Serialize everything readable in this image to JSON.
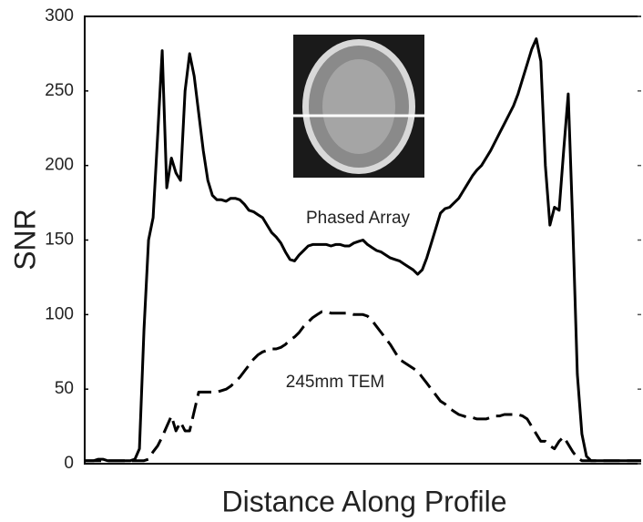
{
  "chart_data": {
    "type": "line",
    "xlabel": "Distance Along Profile",
    "ylabel": "SNR",
    "annotations": [
      "Phased Array",
      "245mm TEM"
    ],
    "categories": [
      null,
      null,
      null,
      null,
      null,
      null,
      null,
      null,
      null,
      null,
      null,
      null,
      null,
      null,
      null,
      null,
      null,
      null,
      null,
      null,
      null,
      null,
      null,
      null,
      null,
      null,
      null,
      null,
      null,
      null,
      null,
      null,
      null,
      null,
      null,
      null,
      null,
      null,
      null,
      null,
      null,
      null,
      null,
      null,
      null,
      null,
      null,
      null,
      null,
      null,
      null,
      null,
      null,
      null,
      null,
      null,
      null,
      null,
      null,
      null,
      null,
      null,
      null,
      null,
      null,
      null,
      null,
      null,
      null,
      null,
      null,
      null,
      null,
      null,
      null,
      null,
      null,
      null,
      null,
      null,
      null,
      null,
      null,
      null,
      null,
      null,
      null,
      null,
      null,
      null,
      null,
      null,
      null,
      null,
      null,
      null,
      null,
      null,
      null,
      null,
      null,
      null,
      null,
      null,
      null,
      null,
      null,
      null,
      null,
      null,
      null,
      null,
      null,
      null,
      null,
      null,
      null,
      null,
      null,
      null,
      null,
      null,
      null
    ],
    "series": [
      {
        "name": "Phased Array",
        "color": "#000000",
        "dash": false,
        "values": [
          2,
          2,
          2,
          3,
          3,
          2,
          2,
          2,
          2,
          2,
          2,
          3,
          10,
          90,
          150,
          165,
          220,
          277,
          185,
          205,
          195,
          190,
          250,
          275,
          260,
          235,
          210,
          190,
          180,
          177,
          177,
          176,
          178,
          178,
          177,
          174,
          170,
          169,
          167,
          165,
          160,
          155,
          152,
          148,
          142,
          137,
          136,
          140,
          143,
          146,
          147,
          147,
          147,
          147,
          146,
          147,
          147,
          146,
          146,
          148,
          149,
          150,
          147,
          145,
          143,
          142,
          140,
          138,
          137,
          136,
          134,
          132,
          130,
          127,
          130,
          138,
          148,
          158,
          168,
          171,
          172,
          175,
          178,
          183,
          188,
          193,
          197,
          200,
          205,
          210,
          216,
          222,
          228,
          234,
          240,
          248,
          258,
          268,
          278,
          285,
          270,
          200,
          160,
          172,
          170,
          210,
          248,
          160,
          60,
          20,
          5,
          2,
          2,
          2,
          2,
          2,
          2,
          2,
          2,
          2,
          2,
          2,
          2
        ]
      },
      {
        "name": "245mm TEM",
        "color": "#000000",
        "dash": true,
        "values": [
          2,
          2,
          2,
          2,
          2,
          2,
          2,
          2,
          2,
          2,
          2,
          2,
          2,
          2,
          3,
          8,
          12,
          18,
          25,
          32,
          22,
          28,
          22,
          22,
          35,
          48,
          48,
          48,
          48,
          48,
          49,
          50,
          52,
          55,
          58,
          62,
          66,
          70,
          73,
          75,
          76,
          77,
          77,
          78,
          80,
          83,
          85,
          88,
          92,
          95,
          98,
          100,
          102,
          102,
          101,
          101,
          101,
          101,
          101,
          100,
          100,
          100,
          99,
          96,
          92,
          88,
          84,
          80,
          75,
          70,
          68,
          66,
          64,
          62,
          58,
          54,
          50,
          46,
          42,
          40,
          37,
          35,
          33,
          32,
          31,
          31,
          30,
          30,
          30,
          31,
          32,
          32,
          33,
          33,
          33,
          33,
          32,
          30,
          25,
          20,
          15,
          15,
          12,
          10,
          15,
          18,
          13,
          8,
          4,
          2,
          2,
          2,
          2,
          2,
          2,
          2,
          2,
          2,
          2,
          2,
          2,
          2,
          2
        ]
      }
    ],
    "ylim": [
      0,
      300
    ],
    "yticks": [
      0,
      50,
      100,
      150,
      200,
      250,
      300
    ],
    "grid": false
  }
}
